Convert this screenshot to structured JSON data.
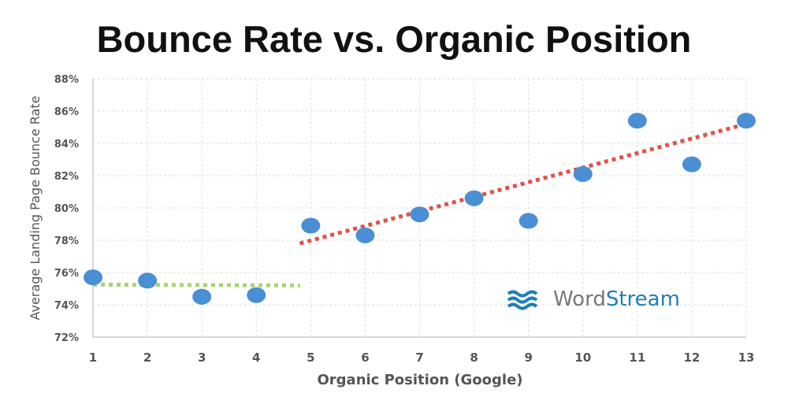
{
  "chart_data": {
    "type": "scatter",
    "title": "Bounce Rate vs. Organic Position",
    "xlabel": "Organic Position (Google)",
    "ylabel": "Average Landing Page Bounce Rate",
    "xlim": [
      1,
      13
    ],
    "ylim": [
      72,
      88
    ],
    "xticks": [
      "1",
      "2",
      "3",
      "4",
      "5",
      "6",
      "7",
      "8",
      "9",
      "10",
      "11",
      "12",
      "13"
    ],
    "yticks": [
      "72%",
      "74%",
      "76%",
      "78%",
      "80%",
      "82%",
      "84%",
      "86%",
      "88%"
    ],
    "grid": true,
    "points": {
      "x": [
        1,
        2,
        3,
        4,
        5,
        6,
        7,
        8,
        9,
        10,
        11,
        12,
        13
      ],
      "y": [
        75.7,
        75.5,
        74.5,
        74.6,
        78.9,
        78.3,
        79.6,
        80.6,
        79.2,
        82.1,
        85.4,
        82.7,
        85.4
      ]
    },
    "trendlines": [
      {
        "x": [
          1,
          4.8
        ],
        "y": [
          75.25,
          75.2
        ],
        "color": "#a6d66e"
      },
      {
        "x": [
          4.8,
          13
        ],
        "y": [
          77.8,
          85.2
        ],
        "color": "#e0524a"
      }
    ],
    "point_color": "#4a8fd4"
  },
  "logo": {
    "text_a": "Word",
    "text_b": "Stream"
  }
}
